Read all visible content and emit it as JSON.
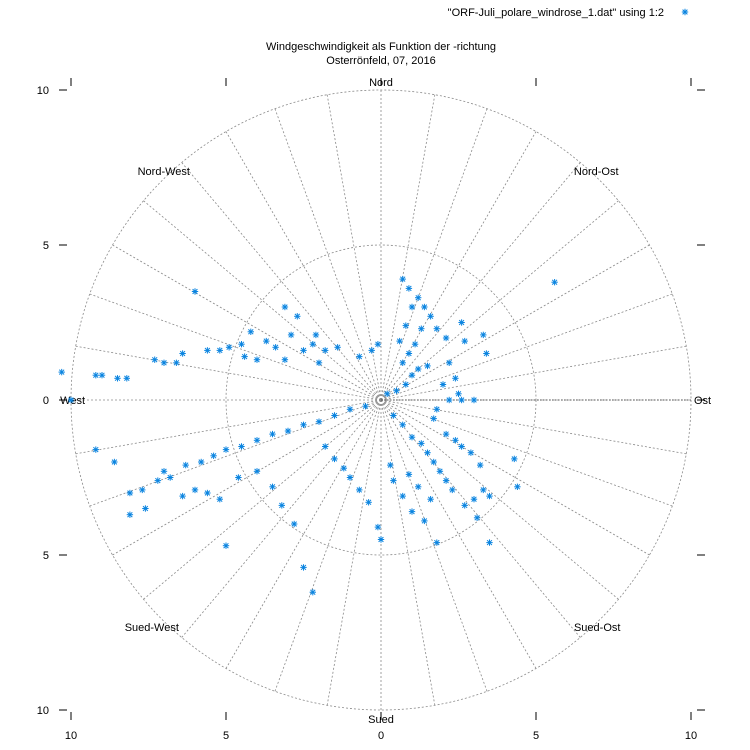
{
  "chart_data": {
    "type": "scatter",
    "polar": true,
    "title": "Windgeschwindigkeit als Funktion der -richtung",
    "subtitle": "Osterrönfeld, 07, 2016",
    "legend": {
      "label": "\"ORF-Juli_polare_windrose_1.dat\" using 1:2",
      "placement": "top-right"
    },
    "marker_color": "#0a84e0",
    "grid_color": "#8a8a8a",
    "directions": [
      {
        "label": "Nord",
        "angle_deg": 90
      },
      {
        "label": "Nord-Ost",
        "angle_deg": 45
      },
      {
        "label": "Ost",
        "angle_deg": 0
      },
      {
        "label": "Sued-Ost",
        "angle_deg": -45
      },
      {
        "label": "Sued",
        "angle_deg": -90
      },
      {
        "label": "Sued-West",
        "angle_deg": -135
      },
      {
        "label": "West",
        "angle_deg": 180
      },
      {
        "label": "Nord-West",
        "angle_deg": 135
      }
    ],
    "rrange": [
      0,
      10
    ],
    "ring_radii": [
      5,
      10
    ],
    "spoke_step_deg": 10,
    "xlim": [
      -10,
      10
    ],
    "ylim": [
      -10,
      10
    ],
    "x_ticks": [
      {
        "value": -10,
        "label": "10"
      },
      {
        "value": -5,
        "label": "5"
      },
      {
        "value": 0,
        "label": "0"
      },
      {
        "value": 5,
        "label": "5"
      },
      {
        "value": 10,
        "label": "10"
      }
    ],
    "y_ticks": [
      {
        "value": 10,
        "label": "10"
      },
      {
        "value": 5,
        "label": "5"
      },
      {
        "value": 0,
        "label": "0"
      },
      {
        "value": -5,
        "label": "5"
      },
      {
        "value": -10,
        "label": "10"
      }
    ],
    "series": [
      {
        "points": [
          [
            -10.3,
            0.9
          ],
          [
            -10.0,
            0.0
          ],
          [
            -9.2,
            0.8
          ],
          [
            -9.0,
            0.8
          ],
          [
            -8.5,
            0.7
          ],
          [
            -8.2,
            0.7
          ],
          [
            -7.3,
            1.3
          ],
          [
            -7.0,
            1.2
          ],
          [
            -6.6,
            1.2
          ],
          [
            -6.4,
            1.5
          ],
          [
            -5.6,
            1.6
          ],
          [
            -5.2,
            1.6
          ],
          [
            -4.9,
            1.7
          ],
          [
            -4.5,
            1.8
          ],
          [
            -4.2,
            2.2
          ],
          [
            -4.4,
            1.4
          ],
          [
            -4.0,
            1.3
          ],
          [
            -3.7,
            1.9
          ],
          [
            -3.4,
            1.7
          ],
          [
            -3.1,
            1.3
          ],
          [
            -2.9,
            2.1
          ],
          [
            -2.5,
            1.6
          ],
          [
            -2.2,
            1.8
          ],
          [
            -2.0,
            1.2
          ],
          [
            -1.8,
            1.6
          ],
          [
            -6.0,
            3.5
          ],
          [
            -3.1,
            3.0
          ],
          [
            -2.7,
            2.7
          ],
          [
            -2.1,
            2.1
          ],
          [
            -1.4,
            1.7
          ],
          [
            -0.7,
            1.4
          ],
          [
            -0.3,
            1.6
          ],
          [
            -0.1,
            1.8
          ],
          [
            0.6,
            1.9
          ],
          [
            0.8,
            2.4
          ],
          [
            0.9,
            3.6
          ],
          [
            1.2,
            3.3
          ],
          [
            1.4,
            3.0
          ],
          [
            1.6,
            2.7
          ],
          [
            1.8,
            2.3
          ],
          [
            2.1,
            2.0
          ],
          [
            2.6,
            2.5
          ],
          [
            2.7,
            1.9
          ],
          [
            3.3,
            2.1
          ],
          [
            3.4,
            1.5
          ],
          [
            5.6,
            3.8
          ],
          [
            0.7,
            3.9
          ],
          [
            1.0,
            3.0
          ],
          [
            1.3,
            2.3
          ],
          [
            1.1,
            1.8
          ],
          [
            0.9,
            1.5
          ],
          [
            0.7,
            1.2
          ],
          [
            1.5,
            1.1
          ],
          [
            2.2,
            1.2
          ],
          [
            2.0,
            0.5
          ],
          [
            2.4,
            0.7
          ],
          [
            2.5,
            0.2
          ],
          [
            3.0,
            0.0
          ],
          [
            2.6,
            0.0
          ],
          [
            2.2,
            0.0
          ],
          [
            1.8,
            -0.3
          ],
          [
            1.7,
            -0.6
          ],
          [
            2.1,
            -1.1
          ],
          [
            2.4,
            -1.3
          ],
          [
            2.6,
            -1.5
          ],
          [
            2.9,
            -1.7
          ],
          [
            3.2,
            -2.1
          ],
          [
            3.3,
            -2.9
          ],
          [
            3.5,
            -3.1
          ],
          [
            3.0,
            -3.2
          ],
          [
            4.3,
            -1.9
          ],
          [
            4.4,
            -2.8
          ],
          [
            3.5,
            -4.6
          ],
          [
            1.8,
            -4.6
          ],
          [
            1.4,
            -3.9
          ],
          [
            1.0,
            -3.6
          ],
          [
            0.7,
            -3.1
          ],
          [
            0.4,
            -2.6
          ],
          [
            0.3,
            -2.1
          ],
          [
            0.0,
            -4.5
          ],
          [
            -0.1,
            -4.1
          ],
          [
            -0.4,
            -3.3
          ],
          [
            -0.7,
            -2.9
          ],
          [
            -1.0,
            -2.5
          ],
          [
            -1.2,
            -2.2
          ],
          [
            -1.5,
            -1.9
          ],
          [
            -1.8,
            -1.5
          ],
          [
            -2.2,
            -6.2
          ],
          [
            -2.5,
            -5.4
          ],
          [
            -2.8,
            -4.0
          ],
          [
            -3.2,
            -3.4
          ],
          [
            -3.5,
            -2.8
          ],
          [
            -4.0,
            -2.3
          ],
          [
            -4.6,
            -2.5
          ],
          [
            -5.0,
            -4.7
          ],
          [
            -5.2,
            -3.2
          ],
          [
            -5.6,
            -3.0
          ],
          [
            -6.0,
            -2.9
          ],
          [
            -6.4,
            -3.1
          ],
          [
            -6.8,
            -2.5
          ],
          [
            -7.2,
            -2.6
          ],
          [
            -7.7,
            -2.9
          ],
          [
            -8.1,
            -3.0
          ],
          [
            -8.1,
            -3.7
          ],
          [
            -7.6,
            -3.5
          ],
          [
            -9.2,
            -1.6
          ],
          [
            -8.6,
            -2.0
          ],
          [
            -7.0,
            -2.3
          ],
          [
            -6.3,
            -2.1
          ],
          [
            -5.8,
            -2.0
          ],
          [
            -5.4,
            -1.8
          ],
          [
            -5.0,
            -1.6
          ],
          [
            -4.5,
            -1.5
          ],
          [
            -4.0,
            -1.3
          ],
          [
            -3.5,
            -1.1
          ],
          [
            -3.0,
            -1.0
          ],
          [
            -2.5,
            -0.8
          ],
          [
            -2.0,
            -0.7
          ],
          [
            -1.5,
            -0.5
          ],
          [
            -1.0,
            -0.3
          ],
          [
            -0.5,
            -0.2
          ],
          [
            0.2,
            0.2
          ],
          [
            0.5,
            0.3
          ],
          [
            0.8,
            0.5
          ],
          [
            1.0,
            0.8
          ],
          [
            1.2,
            1.0
          ],
          [
            0.4,
            -0.5
          ],
          [
            0.7,
            -0.8
          ],
          [
            1.0,
            -1.2
          ],
          [
            1.3,
            -1.4
          ],
          [
            1.5,
            -1.7
          ],
          [
            1.7,
            -2.0
          ],
          [
            1.9,
            -2.3
          ],
          [
            2.1,
            -2.6
          ],
          [
            2.3,
            -2.9
          ],
          [
            1.6,
            -3.2
          ],
          [
            1.2,
            -2.8
          ],
          [
            0.9,
            -2.4
          ],
          [
            2.7,
            -3.4
          ],
          [
            3.1,
            -3.8
          ]
        ]
      }
    ]
  }
}
